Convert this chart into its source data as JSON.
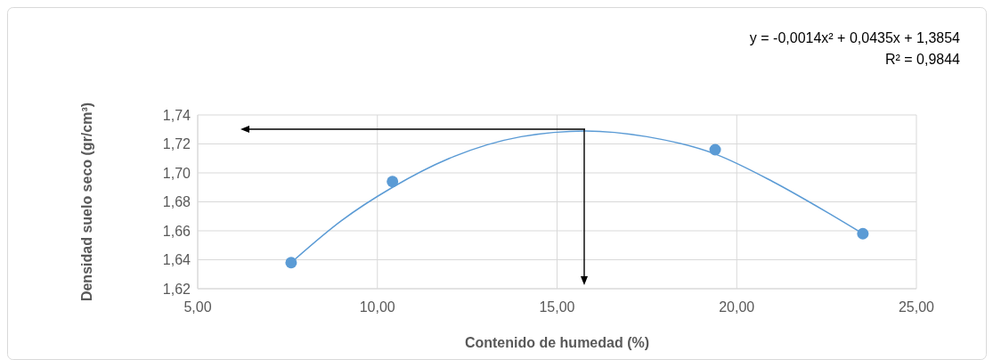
{
  "chart_data": {
    "type": "scatter",
    "xlabel": "Contenido de humedad (%)",
    "ylabel": "Densidad suelo seco (gr/cm³)",
    "annotations": [
      "y = -0,0014x² + 0,0435x + 1,3854",
      "R² = 0,9844"
    ],
    "series": [
      {
        "color": "#5b9bd5",
        "x": [
          7.6,
          10.42,
          19.4,
          23.51
        ],
        "values": [
          1.638,
          1.694,
          1.716,
          1.658
        ],
        "marker": "circle"
      },
      {
        "type": "line",
        "color": "#5b9bd5",
        "x": [
          7.6,
          9,
          10.42,
          12,
          14,
          15.8,
          17.5,
          19.4,
          21,
          22.5,
          23.51
        ],
        "values": [
          1.638,
          1.667,
          1.69,
          1.71,
          1.725,
          1.729,
          1.725,
          1.713,
          1.694,
          1.673,
          1.658
        ],
        "marker": "none"
      }
    ],
    "xlim": [
      5,
      25
    ],
    "xticks": [
      {
        "value": 5,
        "label": "5,00"
      },
      {
        "value": 10,
        "label": "10,00"
      },
      {
        "value": 15,
        "label": "15,00"
      },
      {
        "value": 20,
        "label": "20,00"
      },
      {
        "value": 25,
        "label": "25,00"
      }
    ],
    "ylim": [
      1.62,
      1.74
    ],
    "yticks": [
      {
        "value": 1.62,
        "label": "1,62"
      },
      {
        "value": 1.64,
        "label": "1,64"
      },
      {
        "value": 1.66,
        "label": "1,66"
      },
      {
        "value": 1.68,
        "label": "1,68"
      },
      {
        "value": 1.7,
        "label": "1,70"
      },
      {
        "value": 1.72,
        "label": "1,72"
      },
      {
        "value": 1.74,
        "label": "1,74"
      }
    ],
    "grid": true
  }
}
